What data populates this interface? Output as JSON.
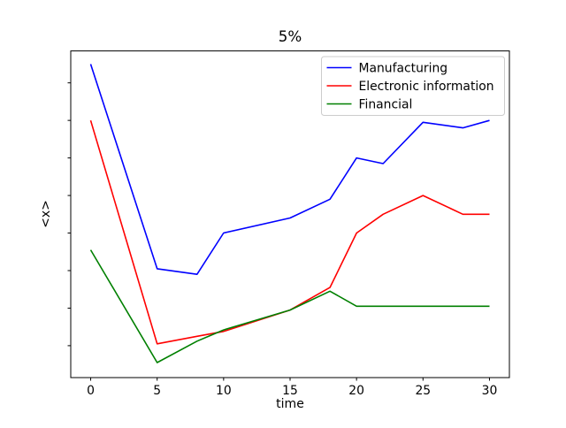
{
  "figure": {
    "background": "#ffffff"
  },
  "chart_data": {
    "type": "line",
    "title": "5%",
    "xlabel": "time",
    "ylabel": "<x>",
    "x": [
      0,
      5,
      8,
      10,
      15,
      18,
      20,
      22,
      25,
      28,
      30
    ],
    "series": [
      {
        "name": "Manufacturing",
        "color": "#0000ff",
        "values": [
          8.5,
          3.05,
          2.9,
          4.0,
          4.4,
          4.9,
          6.0,
          5.85,
          6.95,
          6.8,
          7.0
        ]
      },
      {
        "name": "Electronic information",
        "color": "#ff0000",
        "values": [
          7.0,
          1.05,
          1.25,
          1.38,
          1.95,
          2.55,
          4.0,
          4.5,
          5.0,
          4.5,
          4.5
        ]
      },
      {
        "name": "Financial",
        "color": "#008000",
        "values": [
          3.55,
          0.55,
          1.12,
          1.42,
          1.95,
          2.45,
          2.05,
          2.05,
          2.05,
          2.05,
          2.05
        ]
      }
    ],
    "xticks": [
      0,
      5,
      10,
      15,
      20,
      25,
      30
    ],
    "xticklabels": [
      "0",
      "5",
      "10",
      "15",
      "20",
      "25",
      "30"
    ],
    "yticks": [
      1,
      2,
      3,
      4,
      5,
      6,
      7,
      8
    ],
    "yticklabels": [],
    "yticklabels_visible": false,
    "xlim": [
      -1.5,
      31.5
    ],
    "ylim": [
      0.15,
      8.85
    ],
    "grid": false,
    "axis_color": "#000000",
    "legend": {
      "visible": true,
      "location": "upper right",
      "border_color": "#cccccc",
      "background": "#ffffff"
    }
  }
}
